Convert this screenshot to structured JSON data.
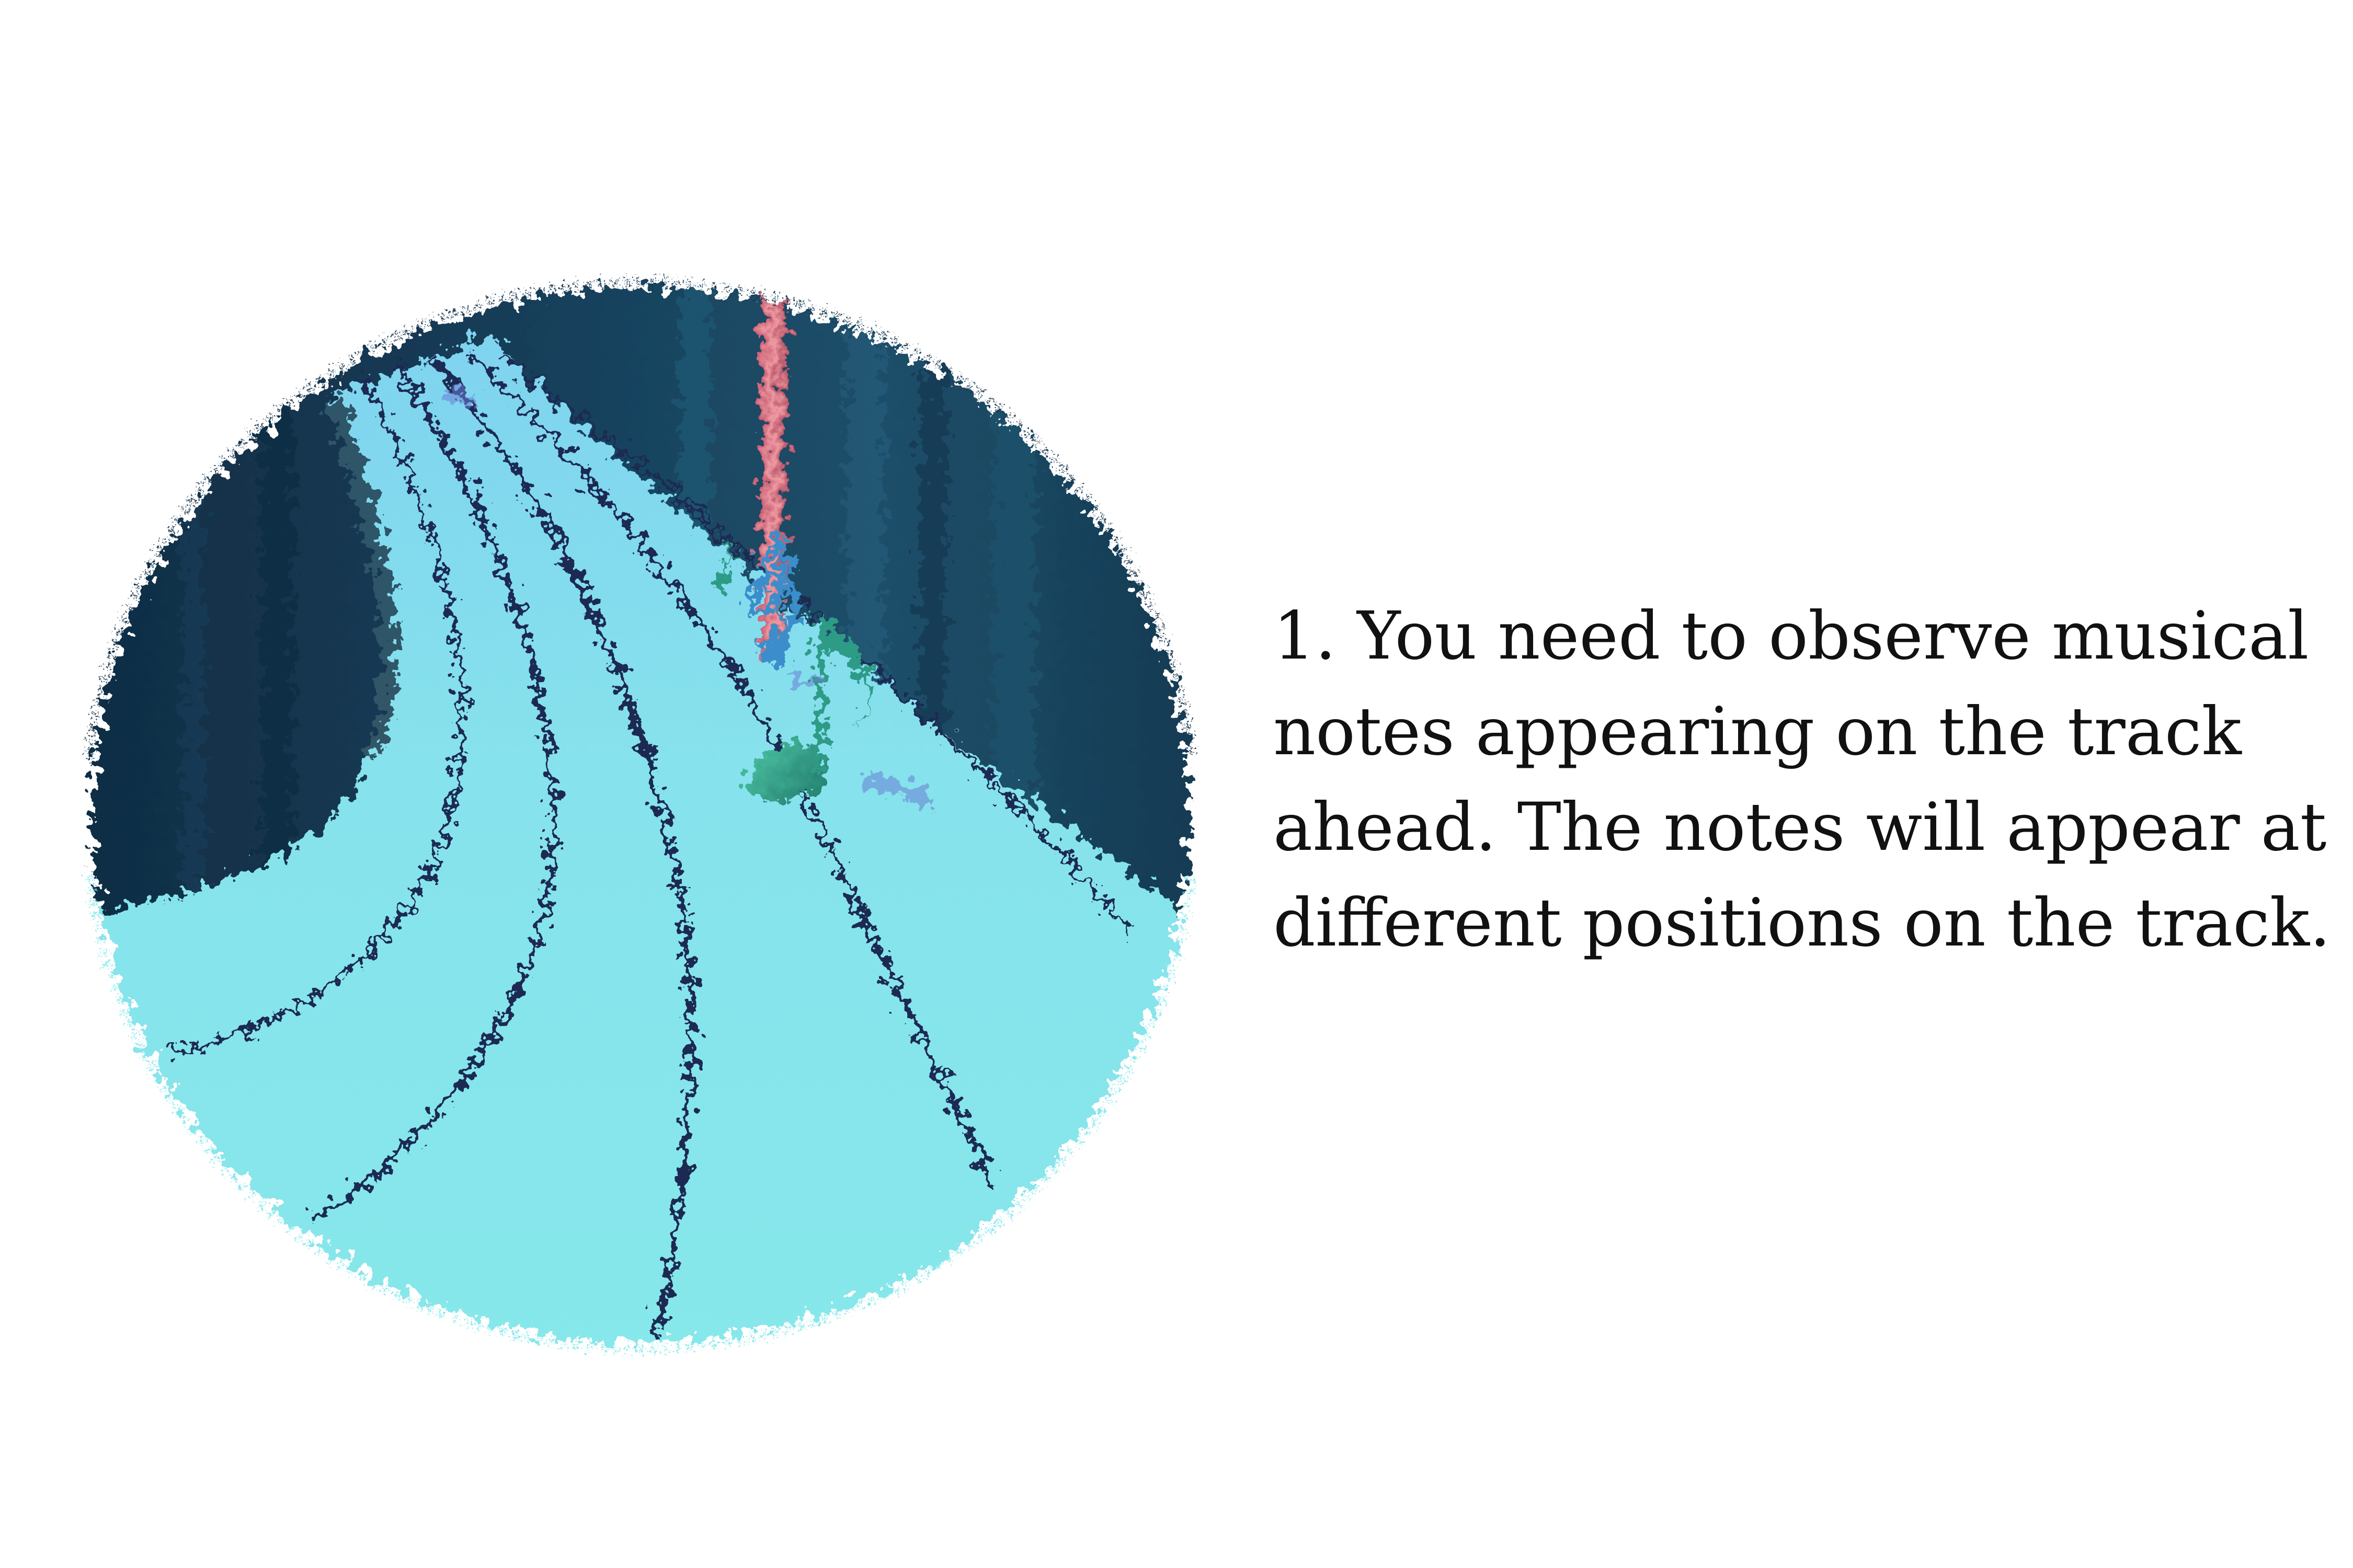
{
  "tutorial": {
    "step_lines": [
      "1. You need to observe musical",
      "notes appearing on the track",
      "ahead. The notes will appear at",
      "different positions on the track."
    ]
  },
  "scene": {
    "icons": [
      "track-lanes",
      "treble-clef-icon",
      "eighth-note-icon",
      "pink-pillar",
      "small-note-icon"
    ],
    "colors": {
      "track": "#86e8ec",
      "track_edge": "#6fd8e0",
      "lane_line": "#1d2a52",
      "background_dark": "#12304a",
      "background_mid": "#1c4e6a",
      "note_green": "#2f9b86",
      "clef_blue": "#3a8ecb",
      "pillar_pink": "#e07a8a",
      "page": "#ffffff",
      "text": "#111111"
    }
  }
}
